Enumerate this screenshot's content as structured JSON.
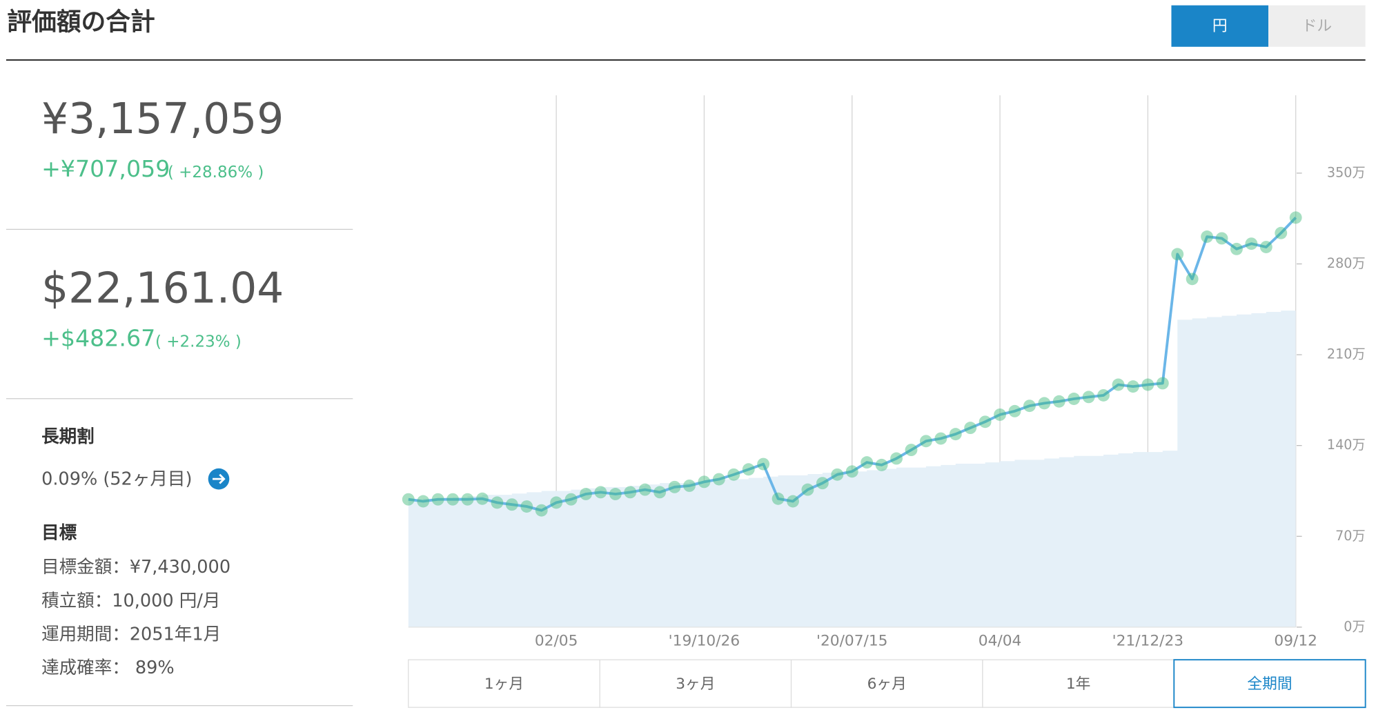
{
  "header": {
    "title": "評価額の合計",
    "currency_toggle": [
      "円",
      "ドル"
    ]
  },
  "summary": {
    "jpy": {
      "total": "¥3,157,059",
      "gain": "+¥707,059",
      "percent": "( +28.86% )"
    },
    "usd": {
      "total": "$22,161.04",
      "gain": "+$482.67",
      "percent": "( +2.23% )"
    }
  },
  "long_term": {
    "title": "長期割",
    "value": "0.09% (52ヶ月目)"
  },
  "goal": {
    "title": "目標",
    "items": [
      "目標金額：¥7,430,000",
      "積立額：10,000 円/月",
      "運用期間：2051年1月",
      "達成確率： 89%"
    ]
  },
  "chart_data": {
    "type": "line",
    "categories": [
      null,
      null,
      null,
      null,
      null,
      null,
      null,
      null,
      null,
      null,
      "02/05",
      null,
      null,
      null,
      null,
      null,
      null,
      null,
      null,
      null,
      "'19/10/26",
      null,
      null,
      null,
      null,
      null,
      null,
      null,
      null,
      null,
      "'20/07/15",
      null,
      null,
      null,
      null,
      null,
      null,
      null,
      null,
      null,
      "04/04",
      null,
      null,
      null,
      null,
      null,
      null,
      null,
      null,
      null,
      "'21/12/23",
      null,
      null,
      null,
      null,
      null,
      null,
      null,
      null,
      null,
      "09/12"
    ],
    "series": [
      {
        "type": "line",
        "color": "#6bb6e8",
        "marker_color": "#3cb878",
        "values": [
          98.5,
          97,
          98.5,
          98.5,
          98.5,
          99,
          96,
          94.5,
          93,
          90,
          96,
          98.5,
          102.6,
          104,
          102.6,
          104,
          106,
          104,
          108,
          109,
          112,
          114,
          117.6,
          121.6,
          125.7,
          99,
          97,
          106,
          111,
          117.6,
          120,
          127,
          125,
          130,
          136.6,
          143.4,
          145.4,
          148.8,
          153.6,
          158.3,
          163.8,
          166.5,
          170.6,
          172.6,
          174,
          176,
          177.4,
          178.7,
          186.9,
          185.5,
          186.9,
          188,
          287.5,
          268.4,
          301,
          299.7,
          291.5,
          295.6,
          293,
          303.8,
          315.7
        ]
      },
      {
        "type": "area",
        "color": "#e5f0f8",
        "values": [
          98,
          99,
          99,
          100,
          101,
          102,
          102,
          103,
          104,
          105,
          105,
          106,
          107,
          108,
          108,
          109,
          110,
          111,
          111,
          112,
          113,
          114,
          114,
          115,
          116,
          117,
          117,
          118,
          119,
          120,
          120,
          121,
          122,
          123,
          123,
          124,
          125,
          126,
          126,
          127,
          128,
          129,
          129,
          130,
          131,
          132,
          132,
          133,
          134,
          135,
          135,
          136,
          237,
          238,
          239,
          240,
          241,
          242,
          243,
          244,
          245
        ]
      }
    ],
    "ylim": [
      0,
      410
    ],
    "yticks": [
      {
        "value": 0,
        "label": "0万"
      },
      {
        "value": 70,
        "label": "70万"
      },
      {
        "value": 140,
        "label": "140万"
      },
      {
        "value": 210,
        "label": "210万"
      },
      {
        "value": 280,
        "label": "280万"
      },
      {
        "value": 350,
        "label": "350万"
      }
    ]
  },
  "period_tabs": [
    "1ヶ月",
    "3ヶ月",
    "6ヶ月",
    "1年",
    "全期間"
  ]
}
